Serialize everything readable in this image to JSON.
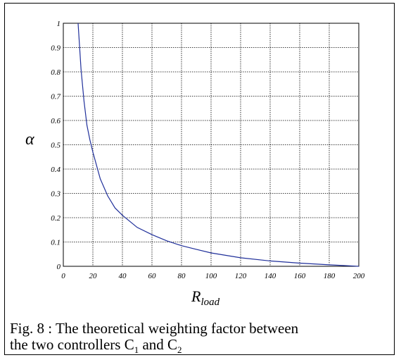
{
  "chart_data": {
    "type": "line",
    "xlabel": "R",
    "xlabel_sub": "load",
    "ylabel": "α",
    "xlim": [
      0,
      200
    ],
    "ylim": [
      0,
      1
    ],
    "grid": true,
    "x_ticks": [
      "0",
      "20",
      "40",
      "60",
      "80",
      "100",
      "120",
      "140",
      "160",
      "180",
      "200"
    ],
    "y_ticks": [
      "0",
      "0.1",
      "0.2",
      "0.3",
      "0.4",
      "0.5",
      "0.6",
      "0.7",
      "0.8",
      "0.9",
      "1"
    ],
    "series": [
      {
        "color": "#1f2f9a",
        "x": [
          10,
          12,
          14,
          16,
          18,
          20,
          25,
          30,
          35,
          40,
          50,
          60,
          70,
          80,
          90,
          100,
          120,
          140,
          160,
          180,
          200
        ],
        "y": [
          1.0,
          0.81,
          0.68,
          0.58,
          0.52,
          0.47,
          0.36,
          0.29,
          0.24,
          0.21,
          0.16,
          0.13,
          0.105,
          0.085,
          0.07,
          0.055,
          0.035,
          0.022,
          0.013,
          0.006,
          0.0
        ]
      }
    ]
  },
  "caption": {
    "line1": "Fig. 8 :  The theoretical weighting factor between",
    "line2_prefix": "the two controllers C",
    "sub1": "1",
    "line2_mid": " and C",
    "sub2": "2"
  }
}
